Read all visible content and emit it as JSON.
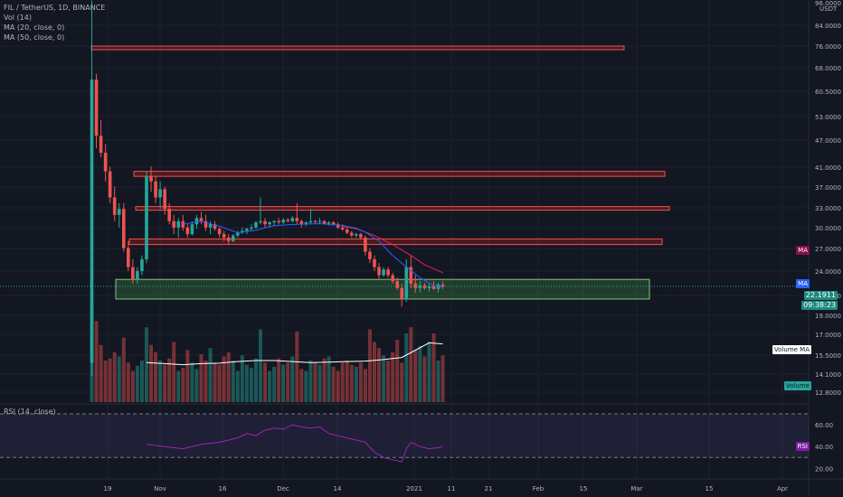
{
  "legend": {
    "symbol": "FIL / TetherUS, 1D, BINANCE",
    "vol": "Vol (14)",
    "ma20": "MA (20, close, 0)",
    "ma50": "MA (50, close, 0)"
  },
  "rsi_legend": "RSI (14, close)",
  "currency": "USDT",
  "badges": {
    "ma_upper": "MA",
    "ma_lower": "MA",
    "price": "22.1911",
    "countdown": "09:38:23",
    "volume_ma": "Volume MA",
    "volume": "Volume",
    "rsi": "RSI"
  },
  "colors": {
    "background": "#131722",
    "up": "#26a69a",
    "down": "#ef5350",
    "ma20": "#2962ff",
    "ma50": "#e91e63",
    "volume_ma_line": "#ffffff",
    "rsi_line": "#9c27b0",
    "resistance_zone": "#b71c1c",
    "support_zone": "#4caf50"
  },
  "chart_data": {
    "type": "candlestick",
    "x_tick_labels": [
      "19",
      "Nov",
      "16",
      "Dec",
      "14",
      "2021",
      "11",
      "21",
      "Feb",
      "15",
      "Mar",
      "15",
      "Apr"
    ],
    "y_tick_labels": [
      "96.0000",
      "84.0000",
      "76.0000",
      "68.0000",
      "60.5000",
      "53.0000",
      "47.0000",
      "41.0000",
      "37.0000",
      "33.0000",
      "30.0000",
      "27.0000",
      "24.0000",
      "21.0000",
      "19.0000",
      "17.0000",
      "15.5000",
      "14.1000",
      "12.8000"
    ],
    "rsi_y_tick_labels": [
      "60.00",
      "40.00",
      "20.00"
    ],
    "y_scale": "log",
    "last_price": 22.1911,
    "resistance_zones": [
      {
        "low": 75.0,
        "high": 76.0
      },
      {
        "low": 39.0,
        "high": 40.0
      },
      {
        "low": 32.8,
        "high": 33.4
      },
      {
        "low": 27.5,
        "high": 28.3
      }
    ],
    "support_zone": {
      "low": 20.8,
      "high": 23.0
    },
    "candles_ohlc": [
      [
        15.0,
        96.0,
        14.0,
        64.0
      ],
      [
        64.0,
        66.0,
        45.0,
        48.0
      ],
      [
        48.0,
        52.0,
        43.0,
        44.0
      ],
      [
        44.0,
        46.0,
        38.0,
        40.0
      ],
      [
        40.0,
        41.0,
        34.0,
        35.0
      ],
      [
        35.0,
        37.0,
        31.0,
        32.0
      ],
      [
        32.0,
        34.0,
        30.0,
        33.0
      ],
      [
        33.0,
        34.0,
        26.5,
        27.0
      ],
      [
        27.0,
        28.0,
        24.0,
        24.5
      ],
      [
        24.5,
        25.5,
        22.5,
        23.0
      ],
      [
        23.0,
        24.5,
        22.5,
        24.0
      ],
      [
        24.0,
        26.0,
        23.5,
        25.5
      ],
      [
        25.5,
        40.0,
        25.0,
        39.0
      ],
      [
        39.0,
        41.0,
        36.0,
        38.0
      ],
      [
        38.0,
        39.0,
        34.0,
        35.0
      ],
      [
        35.0,
        38.0,
        33.0,
        36.5
      ],
      [
        36.5,
        37.0,
        32.0,
        33.0
      ],
      [
        33.0,
        34.0,
        30.5,
        31.0
      ],
      [
        31.0,
        32.0,
        29.0,
        30.0
      ],
      [
        30.0,
        31.5,
        28.5,
        31.0
      ],
      [
        31.0,
        32.0,
        29.5,
        30.0
      ],
      [
        30.0,
        30.5,
        28.5,
        29.0
      ],
      [
        29.0,
        31.0,
        28.8,
        30.5
      ],
      [
        30.5,
        32.0,
        29.8,
        31.5
      ],
      [
        31.5,
        32.5,
        30.5,
        31.0
      ],
      [
        31.0,
        32.0,
        29.5,
        30.0
      ],
      [
        30.0,
        31.0,
        29.0,
        30.5
      ],
      [
        30.5,
        31.0,
        29.5,
        29.8
      ],
      [
        29.8,
        30.0,
        28.5,
        29.0
      ],
      [
        29.0,
        29.5,
        28.0,
        28.5
      ],
      [
        28.5,
        29.0,
        27.5,
        28.0
      ],
      [
        28.0,
        29.0,
        27.8,
        28.8
      ],
      [
        28.8,
        29.5,
        28.5,
        29.3
      ],
      [
        29.3,
        30.0,
        29.0,
        29.5
      ],
      [
        29.5,
        30.0,
        29.0,
        29.8
      ],
      [
        29.8,
        30.5,
        29.5,
        30.0
      ],
      [
        30.0,
        31.0,
        29.8,
        30.8
      ],
      [
        30.8,
        35.0,
        30.5,
        31.0
      ],
      [
        31.0,
        31.5,
        30.0,
        30.5
      ],
      [
        30.5,
        31.0,
        30.0,
        30.8
      ],
      [
        30.8,
        31.2,
        30.2,
        31.0
      ],
      [
        31.0,
        31.5,
        30.5,
        30.8
      ],
      [
        30.8,
        31.5,
        30.5,
        31.2
      ],
      [
        31.2,
        31.5,
        30.8,
        31.0
      ],
      [
        31.0,
        31.8,
        30.8,
        31.5
      ],
      [
        31.5,
        34.0,
        30.5,
        31.0
      ],
      [
        31.0,
        31.3,
        30.0,
        30.5
      ],
      [
        30.5,
        31.0,
        30.2,
        30.8
      ],
      [
        30.8,
        33.0,
        30.5,
        31.0
      ],
      [
        31.0,
        31.2,
        30.6,
        30.9
      ],
      [
        30.9,
        31.5,
        30.5,
        31.0
      ],
      [
        31.0,
        31.2,
        30.5,
        30.6
      ],
      [
        30.6,
        31.0,
        30.3,
        30.8
      ],
      [
        30.8,
        31.0,
        30.3,
        30.5
      ],
      [
        30.5,
        30.8,
        29.8,
        30.0
      ],
      [
        30.0,
        30.5,
        29.5,
        29.7
      ],
      [
        29.7,
        30.0,
        29.0,
        29.2
      ],
      [
        29.2,
        29.5,
        28.5,
        28.8
      ],
      [
        28.8,
        29.2,
        28.5,
        29.0
      ],
      [
        29.0,
        29.2,
        28.2,
        28.5
      ],
      [
        28.5,
        28.8,
        26.0,
        26.5
      ],
      [
        26.5,
        27.0,
        25.0,
        25.5
      ],
      [
        25.5,
        26.0,
        24.0,
        24.5
      ],
      [
        24.5,
        25.0,
        23.0,
        23.5
      ],
      [
        23.5,
        24.5,
        23.3,
        24.2
      ],
      [
        24.2,
        24.5,
        23.2,
        23.5
      ],
      [
        23.5,
        23.8,
        22.5,
        22.8
      ],
      [
        22.8,
        23.2,
        21.8,
        22.0
      ],
      [
        22.0,
        22.5,
        20.0,
        20.8
      ],
      [
        20.8,
        25.5,
        20.5,
        24.5
      ],
      [
        24.5,
        26.0,
        22.0,
        22.5
      ],
      [
        22.5,
        23.5,
        21.5,
        22.0
      ],
      [
        22.0,
        22.8,
        21.5,
        22.3
      ],
      [
        22.3,
        22.6,
        21.8,
        22.0
      ],
      [
        22.0,
        22.5,
        21.6,
        22.2
      ],
      [
        22.2,
        22.8,
        21.8,
        21.9
      ],
      [
        21.9,
        22.6,
        21.5,
        22.4
      ],
      [
        22.4,
        22.8,
        21.9,
        22.19
      ]
    ],
    "ma20": [
      [
        20,
        30.5
      ],
      [
        24,
        31.0
      ],
      [
        28,
        30.2
      ],
      [
        32,
        29.2
      ],
      [
        36,
        29.6
      ],
      [
        40,
        30.3
      ],
      [
        45,
        30.5
      ],
      [
        50,
        30.6
      ],
      [
        55,
        30.3
      ],
      [
        58,
        29.9
      ],
      [
        60,
        29.3
      ],
      [
        63,
        28.0
      ],
      [
        66,
        26.0
      ],
      [
        69,
        24.5
      ],
      [
        72,
        23.2
      ],
      [
        75,
        22.3
      ],
      [
        77,
        22.1
      ]
    ],
    "ma50": [
      [
        55,
        30.2
      ],
      [
        58,
        29.8
      ],
      [
        62,
        28.8
      ],
      [
        66,
        27.5
      ],
      [
        70,
        26.0
      ],
      [
        73,
        24.8
      ],
      [
        77,
        23.8
      ]
    ],
    "volume": [
      95,
      78,
      55,
      40,
      42,
      48,
      44,
      62,
      38,
      30,
      35,
      40,
      72,
      55,
      48,
      40,
      36,
      42,
      58,
      30,
      33,
      50,
      38,
      32,
      46,
      40,
      52,
      38,
      36,
      44,
      48,
      40,
      30,
      45,
      36,
      33,
      42,
      70,
      38,
      30,
      34,
      42,
      36,
      38,
      44,
      68,
      32,
      30,
      40,
      38,
      36,
      42,
      44,
      34,
      30,
      38,
      40,
      36,
      34,
      38,
      32,
      70,
      58,
      52,
      45,
      40,
      48,
      60,
      38,
      66,
      72,
      50,
      54,
      44,
      58,
      66,
      40,
      45
    ],
    "volume_ma": [
      [
        12,
        38
      ],
      [
        16,
        37
      ],
      [
        20,
        36
      ],
      [
        24,
        37
      ],
      [
        28,
        37.5
      ],
      [
        32,
        39
      ],
      [
        36,
        40
      ],
      [
        40,
        40
      ],
      [
        44,
        39
      ],
      [
        48,
        38
      ],
      [
        52,
        38.5
      ],
      [
        56,
        39
      ],
      [
        60,
        39.5
      ],
      [
        64,
        41
      ],
      [
        68,
        43
      ],
      [
        71,
        50
      ],
      [
        74,
        57
      ],
      [
        77,
        56
      ]
    ],
    "rsi": [
      [
        12,
        42
      ],
      [
        16,
        40
      ],
      [
        20,
        38
      ],
      [
        24,
        42
      ],
      [
        28,
        44
      ],
      [
        32,
        48
      ],
      [
        34,
        52
      ],
      [
        36,
        50
      ],
      [
        38,
        55
      ],
      [
        40,
        57
      ],
      [
        42,
        56
      ],
      [
        44,
        60
      ],
      [
        46,
        58
      ],
      [
        48,
        57
      ],
      [
        50,
        58
      ],
      [
        52,
        52
      ],
      [
        54,
        50
      ],
      [
        56,
        48
      ],
      [
        58,
        46
      ],
      [
        60,
        44
      ],
      [
        62,
        35
      ],
      [
        64,
        30
      ],
      [
        66,
        28
      ],
      [
        68,
        26
      ],
      [
        69,
        38
      ],
      [
        70,
        44
      ],
      [
        72,
        40
      ],
      [
        74,
        38
      ],
      [
        76,
        39
      ],
      [
        77,
        40
      ]
    ],
    "rsi_levels": [
      70,
      30
    ]
  }
}
